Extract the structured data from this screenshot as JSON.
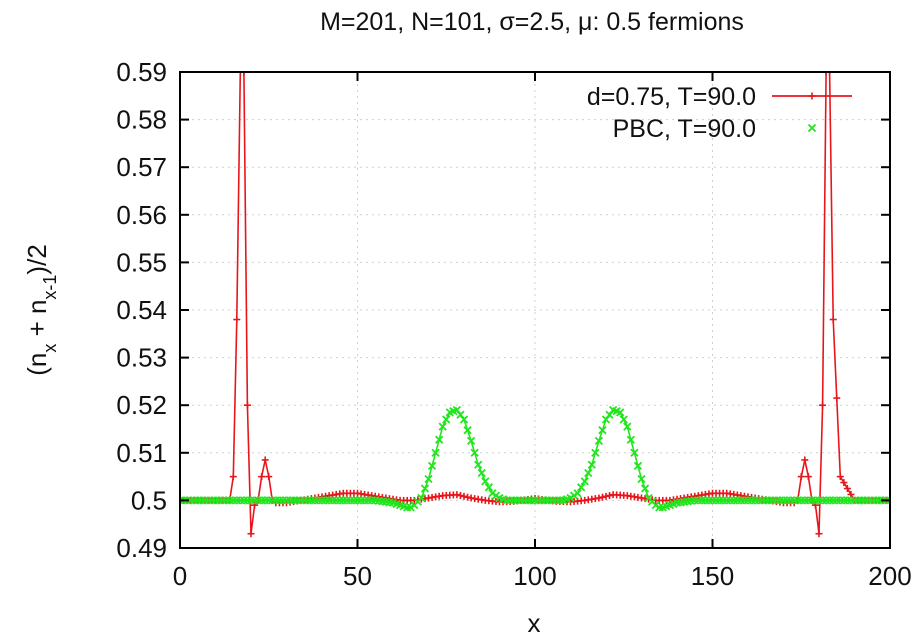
{
  "chart_data": {
    "type": "line",
    "title": "M=201, N=101, σ=2.5, μ: 0.5 fermions",
    "xlabel": "x",
    "ylabel": {
      "prefix": "(n",
      "sub1": "x",
      "middle": " + n",
      "sub2": "x-1",
      "suffix": ")/2"
    },
    "xlim": [
      0,
      200
    ],
    "ylim": [
      0.49,
      0.59
    ],
    "xticks": [
      0,
      50,
      100,
      150,
      200
    ],
    "yticks": [
      0.49,
      0.5,
      0.51,
      0.52,
      0.53,
      0.54,
      0.55,
      0.56,
      0.57,
      0.58,
      0.59
    ],
    "ytick_labels": [
      "0.49",
      "0.5",
      "0.51",
      "0.52",
      "0.53",
      "0.54",
      "0.55",
      "0.56",
      "0.57",
      "0.58",
      "0.59"
    ],
    "grid": true,
    "legend_position": "top-right",
    "series": [
      {
        "name": "d=0.75, T=90.0",
        "color": "#e8161b",
        "marker": "plus",
        "x": [
          0,
          5,
          10,
          14,
          15,
          16,
          17,
          18,
          19,
          20,
          21,
          22,
          23,
          24,
          25,
          26,
          27,
          28,
          30,
          34,
          38,
          42,
          46,
          50,
          54,
          58,
          62,
          66,
          70,
          74,
          78,
          82,
          86,
          90,
          94,
          98,
          100,
          102,
          106,
          110,
          114,
          118,
          122,
          126,
          130,
          134,
          138,
          142,
          146,
          150,
          154,
          158,
          162,
          166,
          170,
          172,
          173,
          174,
          175,
          176,
          177,
          178,
          179,
          180,
          181,
          182,
          183,
          184,
          186,
          190,
          195,
          200
        ],
        "y": [
          0.5,
          0.5,
          0.5,
          0.5,
          0.505,
          0.538,
          0.59,
          0.59,
          0.52,
          0.493,
          0.499,
          0.5,
          0.505,
          0.5085,
          0.505,
          0.5,
          0.4995,
          0.4995,
          0.4995,
          0.5,
          0.5005,
          0.501,
          0.5015,
          0.5015,
          0.501,
          0.5005,
          0.5,
          0.5,
          0.5005,
          0.501,
          0.5012,
          0.5005,
          0.5,
          0.4997,
          0.4998,
          0.5002,
          0.5004,
          0.5002,
          0.4998,
          0.4997,
          0.5,
          0.5005,
          0.5012,
          0.501,
          0.5005,
          0.5,
          0.5,
          0.5005,
          0.501,
          0.5015,
          0.5015,
          0.501,
          0.5005,
          0.5,
          0.4995,
          0.4995,
          0.4995,
          0.5,
          0.505,
          0.5085,
          0.505,
          0.5,
          0.499,
          0.493,
          0.52,
          0.59,
          0.59,
          0.538,
          0.505,
          0.5,
          0.5,
          0.5
        ]
      },
      {
        "name": "PBC, T=90.0",
        "color": "#22e51f",
        "marker": "x",
        "x": [
          0,
          10,
          20,
          30,
          40,
          50,
          55,
          60,
          62,
          64,
          65,
          66,
          68,
          70,
          72,
          74,
          76,
          78,
          80,
          82,
          84,
          86,
          88,
          90,
          92,
          95,
          100,
          105,
          108,
          110,
          112,
          114,
          116,
          118,
          120,
          122,
          124,
          126,
          128,
          130,
          132,
          134,
          135,
          136,
          138,
          140,
          145,
          150,
          160,
          170,
          180,
          190,
          200
        ],
        "y": [
          0.5,
          0.5,
          0.5,
          0.5,
          0.5,
          0.5,
          0.5,
          0.4995,
          0.499,
          0.4985,
          0.4985,
          0.499,
          0.5005,
          0.5045,
          0.51,
          0.5155,
          0.5185,
          0.519,
          0.517,
          0.5125,
          0.5075,
          0.504,
          0.5015,
          0.5005,
          0.5,
          0.5,
          0.5,
          0.5,
          0.5,
          0.5005,
          0.5015,
          0.504,
          0.5075,
          0.5125,
          0.517,
          0.519,
          0.5185,
          0.5155,
          0.51,
          0.5045,
          0.5005,
          0.499,
          0.4985,
          0.4985,
          0.499,
          0.4995,
          0.5,
          0.5,
          0.5,
          0.5,
          0.5,
          0.5,
          0.5
        ]
      }
    ]
  }
}
